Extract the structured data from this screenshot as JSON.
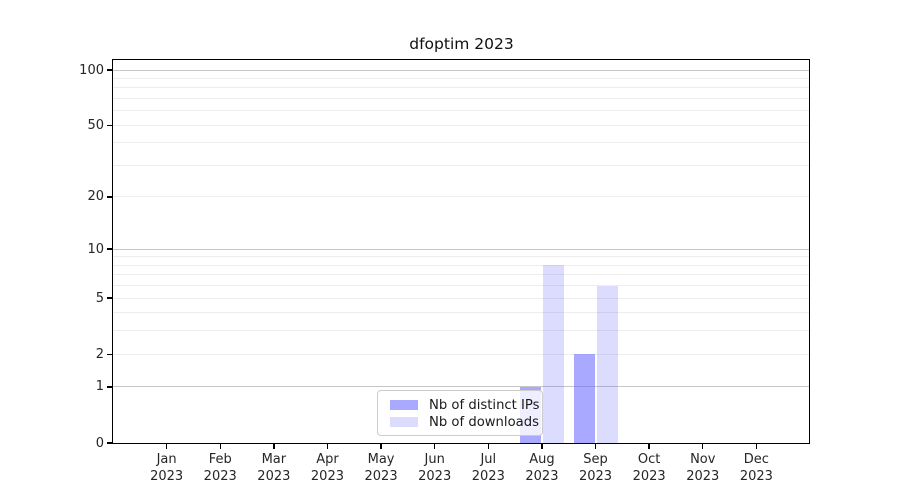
{
  "chart_data": {
    "type": "bar",
    "title": "dfoptim 2023",
    "categories": [
      "Jan",
      "Feb",
      "Mar",
      "Apr",
      "May",
      "Jun",
      "Jul",
      "Aug",
      "Sep",
      "Oct",
      "Nov",
      "Dec"
    ],
    "category_year": "2023",
    "series": [
      {
        "name": "Nb of distinct IPs",
        "values": [
          0,
          0,
          0,
          0,
          0,
          0,
          0,
          1,
          2,
          0,
          0,
          0
        ],
        "color": "#6666ff",
        "alpha": 0.56
      },
      {
        "name": "Nb of downloads",
        "values": [
          0,
          0,
          0,
          0,
          0,
          0,
          0,
          8,
          6,
          0,
          0,
          0
        ],
        "color": "#6666ff",
        "alpha": 0.23
      }
    ],
    "y_scale": "log1p",
    "ylim": [
      0,
      113
    ],
    "y_tick_labels": [
      100,
      50,
      20,
      10,
      5,
      2,
      1,
      0
    ],
    "y_gridlines_major": [
      1,
      10,
      100
    ],
    "y_gridlines_minor": [
      2,
      3,
      4,
      5,
      6,
      7,
      8,
      9,
      20,
      30,
      40,
      50,
      60,
      70,
      80,
      90
    ],
    "grid": true,
    "legend_position": "lower center-left inside plot",
    "colors": {
      "grid_major": "#c6c6c6",
      "grid_minor": "#ededed",
      "axis": "#000000",
      "text": "#262626"
    }
  }
}
